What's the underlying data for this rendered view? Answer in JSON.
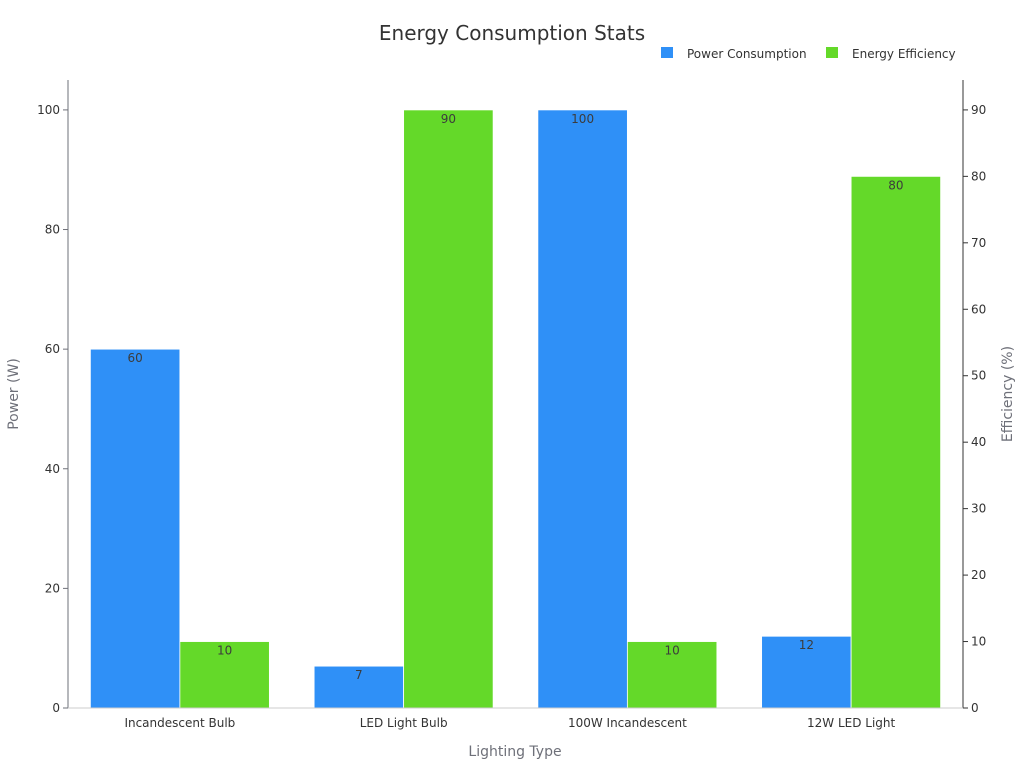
{
  "chart_data": {
    "type": "bar",
    "title": "Energy Consumption Stats",
    "categories": [
      "Incandescent Bulb",
      "LED Light Bulb",
      "100W Incandescent",
      "12W LED Light"
    ],
    "xlabel": "Lighting Type",
    "ylabel": "Power (W)",
    "y2label": "Efficiency (%)",
    "ylim": [
      0,
      105
    ],
    "y2lim": [
      0,
      94.5
    ],
    "yticks": [
      0,
      20,
      40,
      60,
      80,
      100
    ],
    "y2ticks": [
      0,
      10,
      20,
      30,
      40,
      50,
      60,
      70,
      80,
      90
    ],
    "legend_position": "top-right",
    "grid": false,
    "series": [
      {
        "name": "Power Consumption",
        "axis": "left",
        "color": "#2f90f7",
        "values": [
          60,
          7,
          100,
          12
        ]
      },
      {
        "name": "Energy Efficiency",
        "axis": "right",
        "color": "#64d929",
        "values": [
          10,
          90,
          10,
          80
        ]
      }
    ]
  }
}
